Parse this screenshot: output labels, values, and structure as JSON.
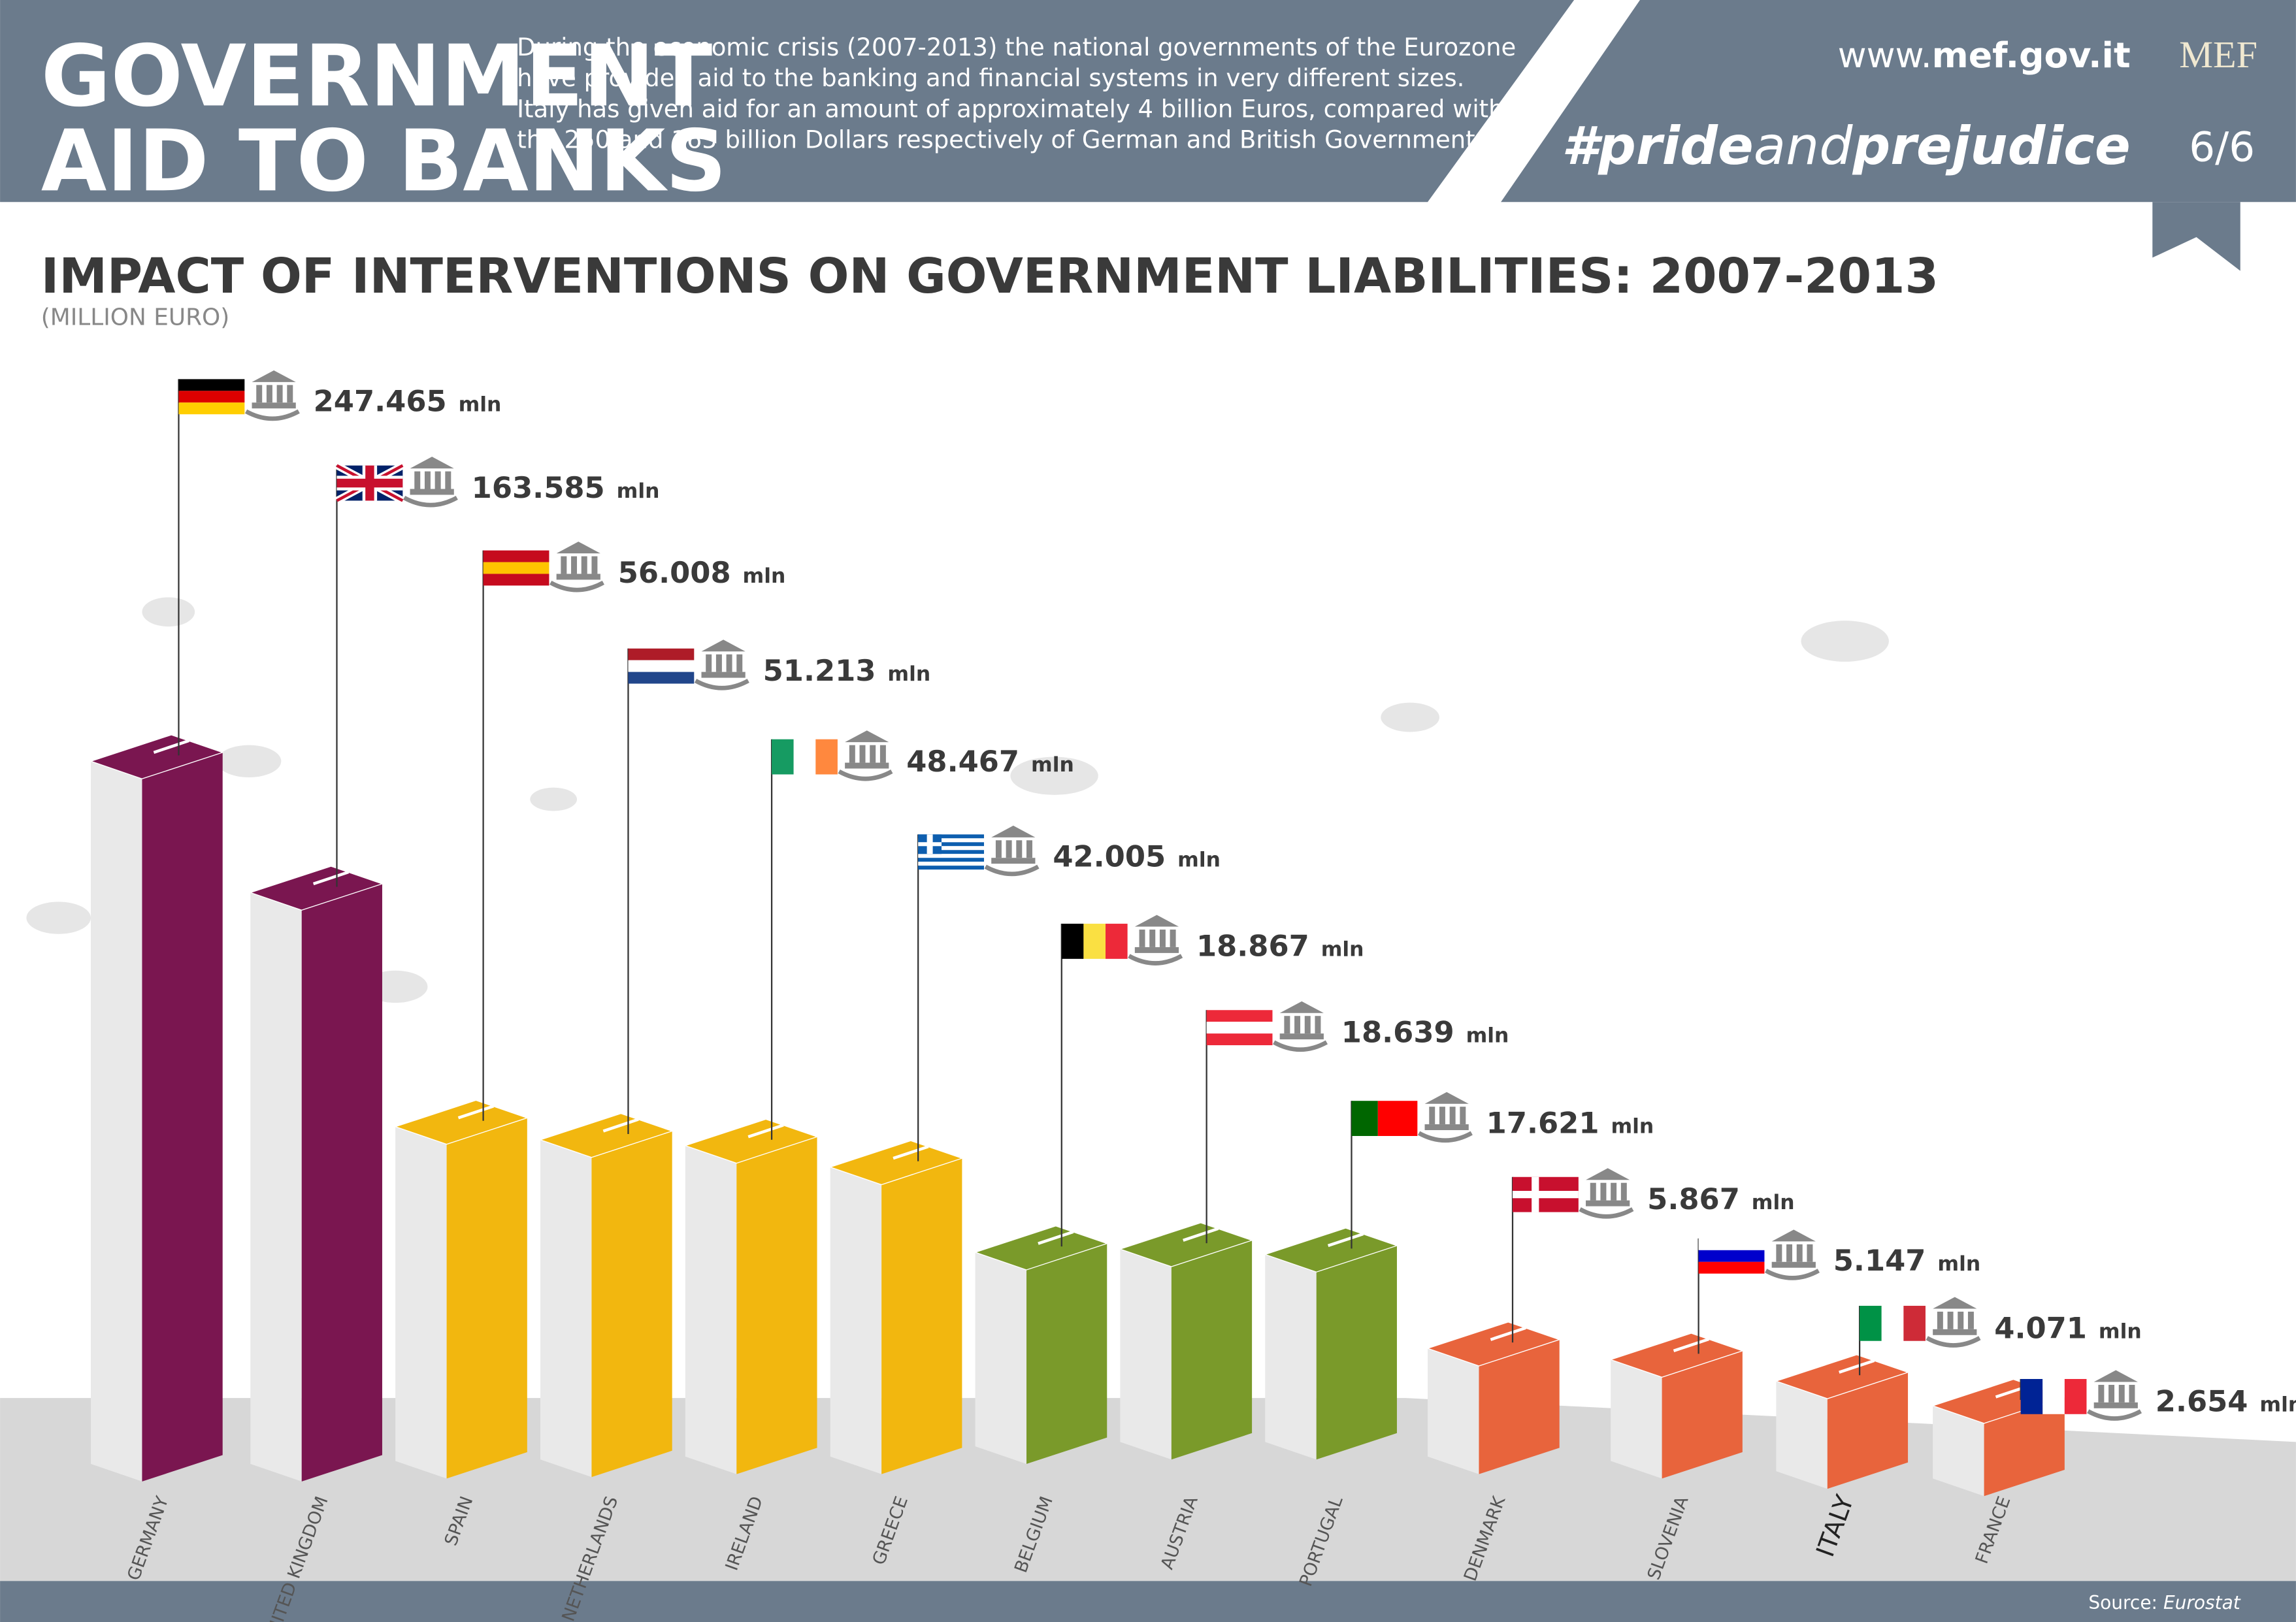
{
  "header": {
    "title_lines": [
      "GOVERNMENT",
      "AID TO BANKS"
    ],
    "description": [
      "During the economic crisis (2007-2013) the national governments of the Eurozone",
      "have provided aid to the banking and financial systems in very different sizes.",
      "Italy has given aid for an amount of approximately 4 billion Euros, compared with",
      "the  250 and 165 billion Dollars respectively of German and British Governments."
    ],
    "website": [
      "www.",
      "mef.gov.it"
    ],
    "logo": "MEF",
    "hashtag": [
      "#pride",
      "and",
      "prejudice"
    ],
    "page": "6/6"
  },
  "chart_data": {
    "type": "bar",
    "title": "IMPACT OF INTERVENTIONS ON GOVERNMENT LIABILITIES: 2007-2013",
    "subtitle": "(MILLION EURO)",
    "categories": [
      "GERMANY",
      "UNITED KINGDOM",
      "SPAIN",
      "NETHERLANDS",
      "IRELAND",
      "GREECE",
      "BELGIUM",
      "AUSTRIA",
      "PORTUGAL",
      "DENMARK",
      "SLOVENIA",
      "ITALY",
      "FRANCE"
    ],
    "values": [
      247465,
      163585,
      56008,
      51213,
      48467,
      42005,
      18867,
      18639,
      17621,
      5867,
      5147,
      4071,
      2654
    ],
    "value_labels": [
      "247.465",
      "163.585",
      "56.008",
      "51.213",
      "48.467",
      "42.005",
      "18.867",
      "18.639",
      "17.621",
      "5.867",
      "5.147",
      "4.071",
      "2.654"
    ],
    "unit": "mln",
    "colors": [
      "#7a1650",
      "#7a1650",
      "#f2b70f",
      "#f2b70f",
      "#f2b70f",
      "#f2b70f",
      "#7a9a2a",
      "#7a9a2a",
      "#7a9a2a",
      "#e8643c",
      "#e8643c",
      "#e8643c",
      "#e8643c"
    ],
    "source_label": "Source:",
    "source": "Eurostat"
  }
}
